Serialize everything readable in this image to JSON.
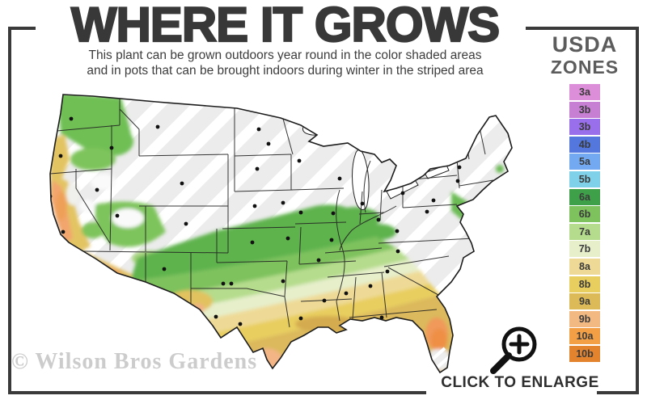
{
  "header": {
    "title": "WHERE IT GROWS",
    "subtitle_line1": "This plant can be grown outdoors year round in the color shaded areas",
    "subtitle_line2": "and in pots that can be brought indoors during winter in the striped area"
  },
  "legend": {
    "title_line1": "USDA",
    "title_line2": "ZONES",
    "zones": [
      {
        "label": "3a",
        "color": "#dd8ed8"
      },
      {
        "label": "3b",
        "color": "#c77fd4"
      },
      {
        "label": "3b",
        "color": "#9a6feb"
      },
      {
        "label": "4b",
        "color": "#5377dd"
      },
      {
        "label": "5a",
        "color": "#73a9f1"
      },
      {
        "label": "5b",
        "color": "#7fd0e9"
      },
      {
        "label": "6a",
        "color": "#3fa04a"
      },
      {
        "label": "6b",
        "color": "#7ec25d"
      },
      {
        "label": "7a",
        "color": "#b5dc8c"
      },
      {
        "label": "7b",
        "color": "#e6efca"
      },
      {
        "label": "8a",
        "color": "#eeda96"
      },
      {
        "label": "8b",
        "color": "#e8ce5e"
      },
      {
        "label": "9a",
        "color": "#dcba57"
      },
      {
        "label": "9b",
        "color": "#f2b983"
      },
      {
        "label": "10a",
        "color": "#f29f45"
      },
      {
        "label": "10b",
        "color": "#e4832e"
      }
    ]
  },
  "map": {
    "watermark": "© Wilson Bros Gardens"
  },
  "actions": {
    "enlarge_label": "CLICK TO ENLARGE"
  },
  "colors": {
    "frame": "#3a3a3a",
    "title_text": "#383838",
    "legend_title": "#5c5c5c",
    "watermark_text": "#cccccc",
    "map_base": "#ececec"
  }
}
